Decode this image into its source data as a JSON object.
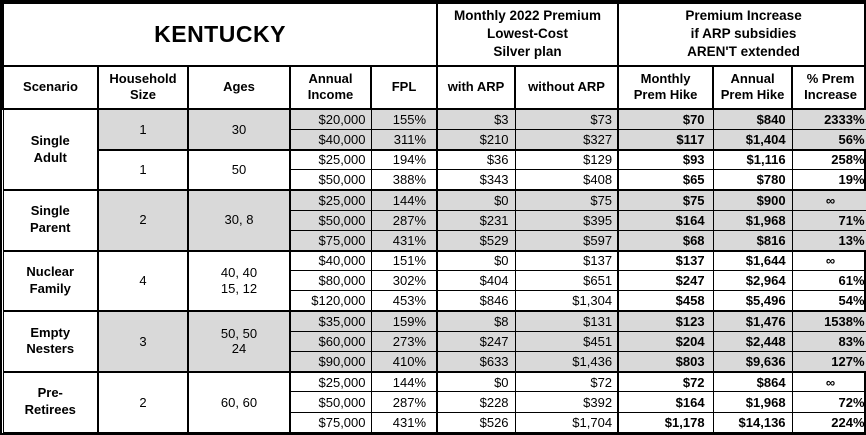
{
  "chart_data": {
    "type": "table",
    "title": "KENTUCKY",
    "premium_header": "Monthly 2022 Premium\nLowest-Cost\nSilver plan",
    "increase_header": "Premium Increase\nif ARP subsidies\nAREN'T extended",
    "columns": [
      "Scenario",
      "Household\nSize",
      "Ages",
      "Annual\nIncome",
      "FPL",
      "with ARP",
      "without ARP",
      "Monthly\nPrem Hike",
      "Annual\nPrem Hike",
      "% Prem\nIncrease"
    ],
    "shaded_color": "#d9d9d9",
    "groups": [
      {
        "scenario": "Single\nAdult",
        "subgroups": [
          {
            "size": "1",
            "ages": "30",
            "shaded": true,
            "rows": [
              {
                "income": "$20,000",
                "fpl": "155%",
                "with_arp": "$3",
                "without_arp": "$73",
                "monthly_hike": "$70",
                "annual_hike": "$840",
                "pct_increase": "2333%"
              },
              {
                "income": "$40,000",
                "fpl": "311%",
                "with_arp": "$210",
                "without_arp": "$327",
                "monthly_hike": "$117",
                "annual_hike": "$1,404",
                "pct_increase": "56%"
              }
            ]
          },
          {
            "size": "1",
            "ages": "50",
            "shaded": false,
            "rows": [
              {
                "income": "$25,000",
                "fpl": "194%",
                "with_arp": "$36",
                "without_arp": "$129",
                "monthly_hike": "$93",
                "annual_hike": "$1,116",
                "pct_increase": "258%"
              },
              {
                "income": "$50,000",
                "fpl": "388%",
                "with_arp": "$343",
                "without_arp": "$408",
                "monthly_hike": "$65",
                "annual_hike": "$780",
                "pct_increase": "19%"
              }
            ]
          }
        ]
      },
      {
        "scenario": "Single\nParent",
        "subgroups": [
          {
            "size": "2",
            "ages": "30, 8",
            "shaded": true,
            "rows": [
              {
                "income": "$25,000",
                "fpl": "144%",
                "with_arp": "$0",
                "without_arp": "$75",
                "monthly_hike": "$75",
                "annual_hike": "$900",
                "pct_increase": "∞"
              },
              {
                "income": "$50,000",
                "fpl": "287%",
                "with_arp": "$231",
                "without_arp": "$395",
                "monthly_hike": "$164",
                "annual_hike": "$1,968",
                "pct_increase": "71%"
              },
              {
                "income": "$75,000",
                "fpl": "431%",
                "with_arp": "$529",
                "without_arp": "$597",
                "monthly_hike": "$68",
                "annual_hike": "$816",
                "pct_increase": "13%"
              }
            ]
          }
        ]
      },
      {
        "scenario": "Nuclear\nFamily",
        "subgroups": [
          {
            "size": "4",
            "ages": "40, 40\n15, 12",
            "shaded": false,
            "rows": [
              {
                "income": "$40,000",
                "fpl": "151%",
                "with_arp": "$0",
                "without_arp": "$137",
                "monthly_hike": "$137",
                "annual_hike": "$1,644",
                "pct_increase": "∞"
              },
              {
                "income": "$80,000",
                "fpl": "302%",
                "with_arp": "$404",
                "without_arp": "$651",
                "monthly_hike": "$247",
                "annual_hike": "$2,964",
                "pct_increase": "61%"
              },
              {
                "income": "$120,000",
                "fpl": "453%",
                "with_arp": "$846",
                "without_arp": "$1,304",
                "monthly_hike": "$458",
                "annual_hike": "$5,496",
                "pct_increase": "54%"
              }
            ]
          }
        ]
      },
      {
        "scenario": "Empty\nNesters",
        "subgroups": [
          {
            "size": "3",
            "ages": "50, 50\n24",
            "shaded": true,
            "rows": [
              {
                "income": "$35,000",
                "fpl": "159%",
                "with_arp": "$8",
                "without_arp": "$131",
                "monthly_hike": "$123",
                "annual_hike": "$1,476",
                "pct_increase": "1538%"
              },
              {
                "income": "$60,000",
                "fpl": "273%",
                "with_arp": "$247",
                "without_arp": "$451",
                "monthly_hike": "$204",
                "annual_hike": "$2,448",
                "pct_increase": "83%"
              },
              {
                "income": "$90,000",
                "fpl": "410%",
                "with_arp": "$633",
                "without_arp": "$1,436",
                "monthly_hike": "$803",
                "annual_hike": "$9,636",
                "pct_increase": "127%"
              }
            ]
          }
        ]
      },
      {
        "scenario": "Pre-\nRetirees",
        "subgroups": [
          {
            "size": "2",
            "ages": "60, 60",
            "shaded": false,
            "rows": [
              {
                "income": "$25,000",
                "fpl": "144%",
                "with_arp": "$0",
                "without_arp": "$72",
                "monthly_hike": "$72",
                "annual_hike": "$864",
                "pct_increase": "∞"
              },
              {
                "income": "$50,000",
                "fpl": "287%",
                "with_arp": "$228",
                "without_arp": "$392",
                "monthly_hike": "$164",
                "annual_hike": "$1,968",
                "pct_increase": "72%"
              },
              {
                "income": "$75,000",
                "fpl": "431%",
                "with_arp": "$526",
                "without_arp": "$1,704",
                "monthly_hike": "$1,178",
                "annual_hike": "$14,136",
                "pct_increase": "224%"
              }
            ]
          }
        ]
      }
    ]
  }
}
